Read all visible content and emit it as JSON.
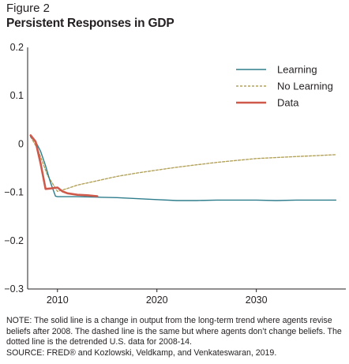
{
  "figure": {
    "label": "Figure 2",
    "title": "Persistent Responses in GDP"
  },
  "chart_data": {
    "type": "line",
    "title": "Persistent Responses in GDP",
    "xlabel": "",
    "ylabel": "",
    "xlim": [
      2007,
      2039
    ],
    "ylim": [
      -0.3,
      0.2
    ],
    "x_ticks": [
      2010,
      2020,
      2030
    ],
    "y_ticks": [
      0.2,
      0.1,
      0,
      -0.1,
      -0.2,
      -0.3
    ],
    "y_tick_labels": [
      "0.2",
      "0.1",
      "0",
      "−0.1",
      "−0.2",
      "−0.3"
    ],
    "grid": false,
    "legend": "top-right",
    "series": [
      {
        "name": "Learning",
        "style": "solid",
        "color": "#2e7d8c",
        "x": [
          2007.3,
          2007.8,
          2008.3,
          2008.8,
          2009.3,
          2009.8,
          2010,
          2012,
          2014,
          2016,
          2018,
          2020,
          2022,
          2024,
          2026,
          2028,
          2030,
          2032,
          2034,
          2036,
          2038
        ],
        "y": [
          0.015,
          0.005,
          -0.015,
          -0.045,
          -0.08,
          -0.108,
          -0.109,
          -0.109,
          -0.11,
          -0.111,
          -0.113,
          -0.115,
          -0.117,
          -0.117,
          -0.116,
          -0.116,
          -0.116,
          -0.117,
          -0.116,
          -0.116,
          -0.116
        ]
      },
      {
        "name": "No Learning",
        "style": "dashed",
        "color": "#b3a25a",
        "x": [
          2007.3,
          2008,
          2009,
          2010,
          2011,
          2012,
          2014,
          2016,
          2018,
          2020,
          2022,
          2024,
          2026,
          2028,
          2030,
          2032,
          2034,
          2036,
          2038
        ],
        "y": [
          0.015,
          -0.01,
          -0.065,
          -0.098,
          -0.092,
          -0.085,
          -0.076,
          -0.067,
          -0.06,
          -0.054,
          -0.048,
          -0.043,
          -0.038,
          -0.034,
          -0.03,
          -0.028,
          -0.026,
          -0.024,
          -0.022
        ]
      },
      {
        "name": "Data",
        "style": "solid",
        "color": "#cf5a4b",
        "x": [
          2007.3,
          2007.8,
          2008.3,
          2008.8,
          2009.3,
          2010,
          2010.5,
          2011,
          2012,
          2013,
          2014
        ],
        "y": [
          0.018,
          0.005,
          -0.04,
          -0.093,
          -0.092,
          -0.09,
          -0.098,
          -0.102,
          -0.105,
          -0.106,
          -0.108
        ]
      }
    ]
  },
  "note": {
    "text": "NOTE: The solid line is a change in output from the long-term trend where agents revise beliefs after 2008. The dashed line is the same but where agents don’t change beliefs. The dotted line is the detrended U.S. data for 2008-14.",
    "source": "SOURCE: FRED® and Kozlowski, Veldkamp, and Venkateswaran, 2019."
  }
}
